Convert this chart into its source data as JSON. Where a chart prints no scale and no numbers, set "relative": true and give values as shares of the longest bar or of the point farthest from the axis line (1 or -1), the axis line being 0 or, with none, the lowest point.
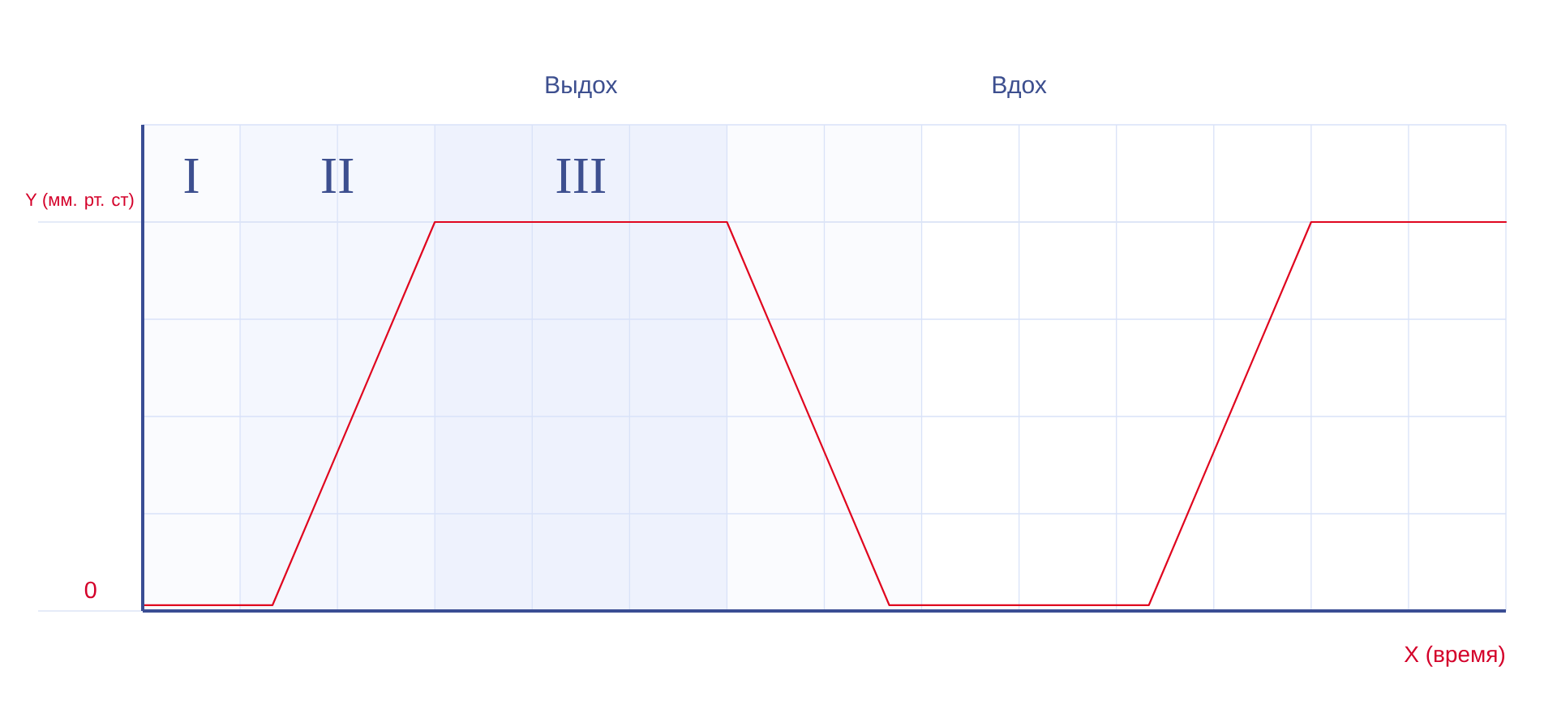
{
  "chart_data": {
    "type": "line",
    "xlabel": "X (время)",
    "ylabel": "Y (мм. рт. ст)",
    "categories": [
      null,
      null,
      null,
      null,
      null,
      null,
      null,
      null,
      null,
      null,
      null,
      null,
      null,
      null,
      null,
      null,
      null,
      null,
      null,
      null,
      null,
      null,
      null,
      null,
      null,
      null,
      null,
      null,
      null,
      null,
      null,
      null,
      null,
      null,
      null,
      null,
      null,
      null,
      null,
      null,
      null,
      null,
      null
    ],
    "values": [
      0.015,
      0.015,
      0.015,
      0.015,
      0.015,
      0.212,
      0.409,
      0.606,
      0.803,
      1,
      1,
      1,
      1,
      1,
      1,
      1,
      1,
      1,
      1,
      0.803,
      0.606,
      0.409,
      0.212,
      0.015,
      0.015,
      0.015,
      0.015,
      0.015,
      0.015,
      0.015,
      0.015,
      0.015,
      0.212,
      0.409,
      0.606,
      0.803,
      1,
      1,
      1,
      1,
      1,
      1,
      1
    ],
    "color": "#e0061f",
    "relative": true,
    "grid": true,
    "line_style": "solid",
    "ref_lines": [
      {
        "axis": "y",
        "value": 0,
        "label": "0",
        "color": "#dce4f6"
      },
      {
        "axis": "y",
        "value": 1,
        "color": "#dce4f6"
      }
    ],
    "annotations": [
      "Выдох",
      "Вдох",
      "I",
      "II",
      "III"
    ]
  }
}
